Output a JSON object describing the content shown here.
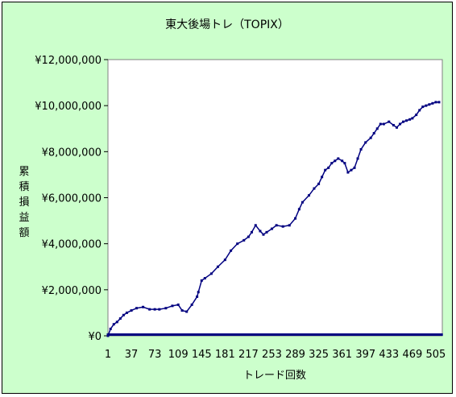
{
  "chart_data": {
    "type": "line",
    "title": "東大後場トレ（TOPIX）",
    "xlabel": "トレード回数",
    "ylabel": "累積損益額",
    "ylim": [
      0,
      12000000
    ],
    "yticks": [
      0,
      2000000,
      4000000,
      6000000,
      8000000,
      10000000,
      12000000
    ],
    "ytick_labels": [
      "¥0",
      "¥2,000,000",
      "¥4,000,000",
      "¥6,000,000",
      "¥8,000,000",
      "¥10,000,000",
      "¥12,000,000"
    ],
    "xlim": [
      1,
      515
    ],
    "xticks": [
      1,
      37,
      73,
      109,
      145,
      181,
      217,
      253,
      289,
      325,
      361,
      397,
      433,
      469,
      505
    ],
    "xtick_labels": [
      "1",
      "37",
      "73",
      "109",
      "145",
      "181",
      "217",
      "253",
      "289",
      "325",
      "361",
      "397",
      "433",
      "469",
      "505"
    ],
    "grid": false,
    "series": [
      {
        "color": "#000080",
        "x": [
          1,
          5,
          10,
          15,
          20,
          25,
          30,
          37,
          45,
          55,
          65,
          73,
          80,
          90,
          100,
          109,
          115,
          122,
          130,
          138,
          140,
          145,
          150,
          160,
          170,
          181,
          190,
          200,
          210,
          217,
          222,
          228,
          235,
          240,
          245,
          253,
          260,
          270,
          280,
          289,
          295,
          300,
          310,
          318,
          325,
          330,
          335,
          340,
          345,
          350,
          355,
          361,
          365,
          370,
          375,
          380,
          385,
          390,
          397,
          405,
          410,
          415,
          420,
          425,
          433,
          440,
          445,
          450,
          455,
          460,
          465,
          469,
          475,
          480,
          485,
          490,
          495,
          500,
          505,
          510
        ],
        "y": [
          0,
          300000,
          500000,
          600000,
          750000,
          900000,
          1000000,
          1100000,
          1200000,
          1250000,
          1150000,
          1150000,
          1150000,
          1200000,
          1300000,
          1350000,
          1100000,
          1050000,
          1350000,
          1700000,
          1900000,
          2400000,
          2500000,
          2700000,
          3000000,
          3300000,
          3700000,
          4000000,
          4150000,
          4300000,
          4500000,
          4800000,
          4550000,
          4400000,
          4500000,
          4650000,
          4800000,
          4750000,
          4800000,
          5100000,
          5500000,
          5800000,
          6100000,
          6400000,
          6600000,
          6900000,
          7200000,
          7300000,
          7500000,
          7600000,
          7700000,
          7600000,
          7500000,
          7100000,
          7200000,
          7300000,
          7700000,
          8100000,
          8400000,
          8600000,
          8800000,
          9000000,
          9200000,
          9200000,
          9300000,
          9150000,
          9050000,
          9200000,
          9300000,
          9350000,
          9400000,
          9450000,
          9600000,
          9800000,
          9950000,
          10000000,
          10050000,
          10100000,
          10150000,
          10150000
        ]
      }
    ]
  }
}
